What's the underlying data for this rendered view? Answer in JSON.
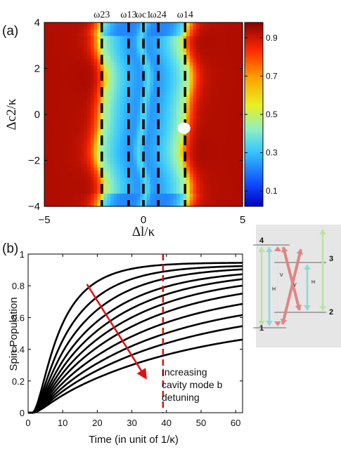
{
  "chart_data": [
    {
      "type": "heatmap",
      "panel_label": "(a)",
      "xlabel": "Δl/κ",
      "ylabel": "Δc2/κ",
      "xlim": [
        -5,
        5
      ],
      "ylim": [
        -4,
        4
      ],
      "x_ticks": [
        -5,
        0,
        5
      ],
      "y_ticks": [
        -4,
        -2,
        0,
        2,
        4
      ],
      "colorbar": {
        "range": [
          0.02,
          0.98
        ],
        "ticks": [
          0.1,
          0.3,
          0.5,
          0.7,
          0.9
        ],
        "tick_labels": [
          "0.1",
          "0.3",
          "0.5",
          "0.7",
          "0.9"
        ]
      },
      "vertical_markers": [
        {
          "label": "ω23",
          "x": -2.1
        },
        {
          "label": "ω13",
          "x": -0.75
        },
        {
          "label": "ωc1",
          "x": 0.0
        },
        {
          "label": "ω24",
          "x": 0.75
        },
        {
          "label": "ω14",
          "x": 2.1
        }
      ],
      "point_marker": {
        "x": 2.05,
        "y": -0.6,
        "color": "#ffffff"
      }
    },
    {
      "type": "line",
      "panel_label": "(b)",
      "xlabel": "Time (in unit of 1/κ)",
      "ylabel": "Spin Population",
      "xlim": [
        0,
        62
      ],
      "ylim": [
        0,
        1
      ],
      "x_ticks": [
        0,
        10,
        20,
        30,
        40,
        50,
        60
      ],
      "y_ticks": [
        0,
        0.2,
        0.4,
        0.6,
        0.8,
        1
      ],
      "y_tick_labels": [
        "0",
        "0.2",
        "0.4",
        "0.6",
        "0.8",
        "1"
      ],
      "series": [
        {
          "final_value": 0.945
        },
        {
          "final_value": 0.925
        },
        {
          "final_value": 0.905
        },
        {
          "final_value": 0.875
        },
        {
          "final_value": 0.845
        },
        {
          "final_value": 0.805
        },
        {
          "final_value": 0.755
        },
        {
          "final_value": 0.69
        },
        {
          "final_value": 0.62
        },
        {
          "final_value": 0.55
        },
        {
          "final_value": 0.465
        }
      ],
      "series_color": "#000000",
      "dashed_line_x": 39,
      "dashed_line_color": "#e01010",
      "arrow": {
        "from": [
          17,
          0.81
        ],
        "to": [
          34,
          0.22
        ],
        "color": "#e01010"
      },
      "annotation": [
        "Increasing",
        "cavity mode b",
        "detuning"
      ]
    }
  ],
  "level_diagram": {
    "level_labels": [
      "1",
      "2",
      "3",
      "4"
    ],
    "transition_labels": [
      "V",
      "H",
      "V",
      "H"
    ],
    "colors": {
      "v_green": "#b5e6a0",
      "h_cyan": "#8fd7dd",
      "cross_red": "#e08585",
      "background": "#e6e6e6"
    }
  }
}
